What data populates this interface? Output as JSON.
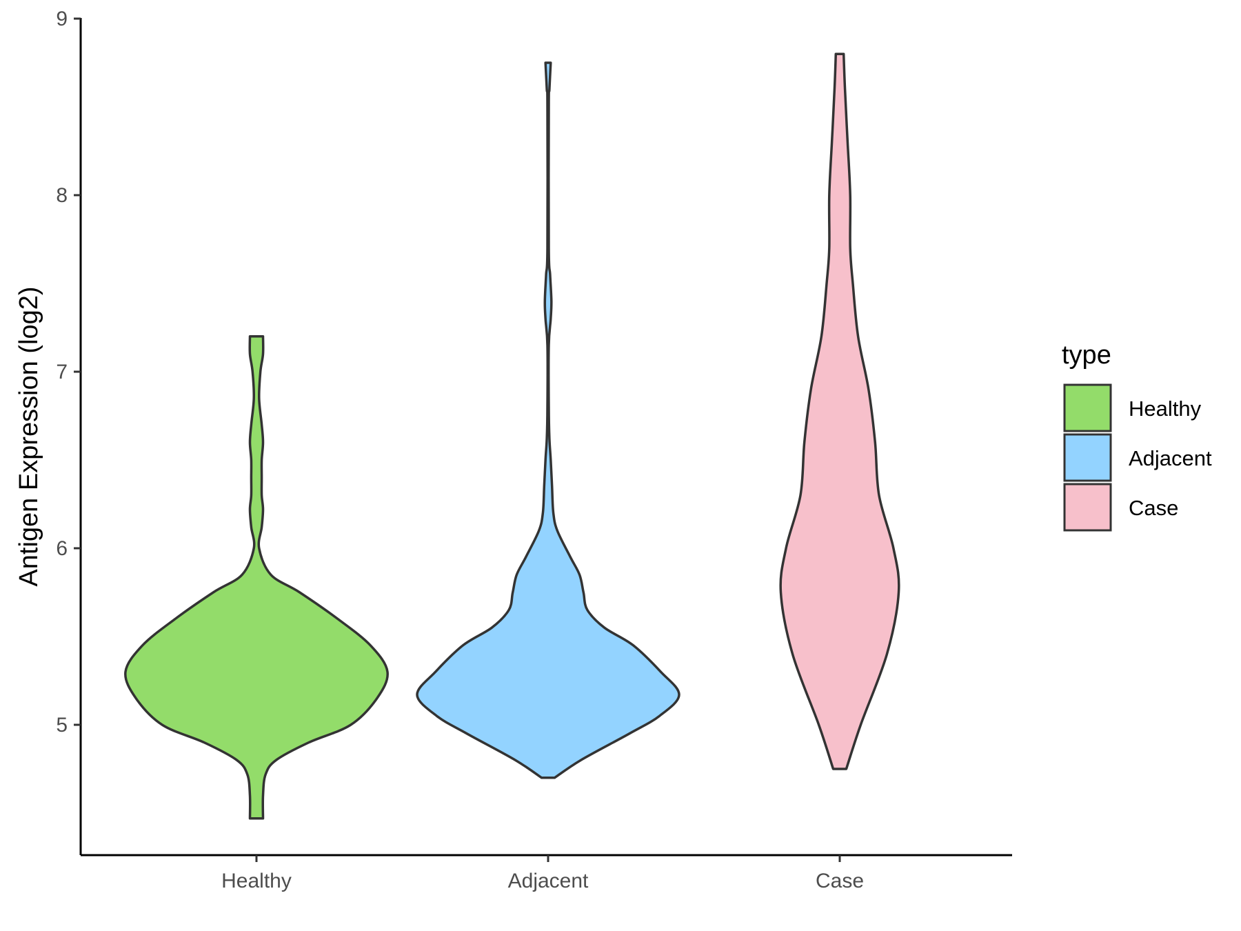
{
  "chart_data": {
    "type": "violin",
    "title": "",
    "xlabel": "",
    "ylabel": "Antigen Expression (log2)",
    "ylim": [
      4.3,
      9.0
    ],
    "y_ticks": [
      "5",
      "6",
      "7",
      "8",
      "9"
    ],
    "categories": [
      "Healthy",
      "Adjacent",
      "Case"
    ],
    "legend": {
      "title": "type",
      "position": "right",
      "entries": [
        "Healthy",
        "Adjacent",
        "Case"
      ]
    },
    "colors": {
      "Healthy": "#93dc6a",
      "Adjacent": "#93d3ff",
      "Case": "#f7c0cb"
    },
    "series": [
      {
        "name": "Healthy",
        "profile": [
          [
            4.47,
            0.05
          ],
          [
            4.6,
            0.05
          ],
          [
            4.72,
            0.07
          ],
          [
            4.8,
            0.15
          ],
          [
            4.9,
            0.4
          ],
          [
            5.0,
            0.72
          ],
          [
            5.15,
            0.92
          ],
          [
            5.3,
            1.0
          ],
          [
            5.45,
            0.87
          ],
          [
            5.6,
            0.62
          ],
          [
            5.75,
            0.33
          ],
          [
            5.85,
            0.11
          ],
          [
            6.0,
            0.02
          ],
          [
            6.12,
            0.04
          ],
          [
            6.22,
            0.05
          ],
          [
            6.3,
            0.04
          ],
          [
            6.4,
            0.04
          ],
          [
            6.5,
            0.04
          ],
          [
            6.6,
            0.05
          ],
          [
            6.7,
            0.04
          ],
          [
            6.85,
            0.02
          ],
          [
            7.0,
            0.03
          ],
          [
            7.1,
            0.05
          ],
          [
            7.2,
            0.05
          ]
        ]
      },
      {
        "name": "Adjacent",
        "profile": [
          [
            4.7,
            0.05
          ],
          [
            4.8,
            0.25
          ],
          [
            4.95,
            0.62
          ],
          [
            5.05,
            0.85
          ],
          [
            5.17,
            1.0
          ],
          [
            5.3,
            0.86
          ],
          [
            5.45,
            0.65
          ],
          [
            5.55,
            0.43
          ],
          [
            5.65,
            0.3
          ],
          [
            5.75,
            0.27
          ],
          [
            5.85,
            0.24
          ],
          [
            5.95,
            0.17
          ],
          [
            6.1,
            0.07
          ],
          [
            6.2,
            0.04
          ],
          [
            6.35,
            0.03
          ],
          [
            6.5,
            0.02
          ],
          [
            6.62,
            0.01
          ],
          [
            6.8,
            0.005
          ],
          [
            7.15,
            0.005
          ],
          [
            7.3,
            0.02
          ],
          [
            7.4,
            0.025
          ],
          [
            7.55,
            0.015
          ],
          [
            7.7,
            0.005
          ],
          [
            8.5,
            0.005
          ],
          [
            8.6,
            0.01
          ],
          [
            8.75,
            0.02
          ]
        ]
      },
      {
        "name": "Case",
        "profile": [
          [
            4.75,
            0.05
          ],
          [
            5.0,
            0.16
          ],
          [
            5.4,
            0.36
          ],
          [
            5.75,
            0.45
          ],
          [
            6.0,
            0.41
          ],
          [
            6.3,
            0.3
          ],
          [
            6.6,
            0.27
          ],
          [
            6.9,
            0.22
          ],
          [
            7.2,
            0.14
          ],
          [
            7.5,
            0.1
          ],
          [
            7.7,
            0.08
          ],
          [
            8.0,
            0.08
          ],
          [
            8.3,
            0.06
          ],
          [
            8.6,
            0.04
          ],
          [
            8.8,
            0.03
          ]
        ]
      }
    ]
  }
}
